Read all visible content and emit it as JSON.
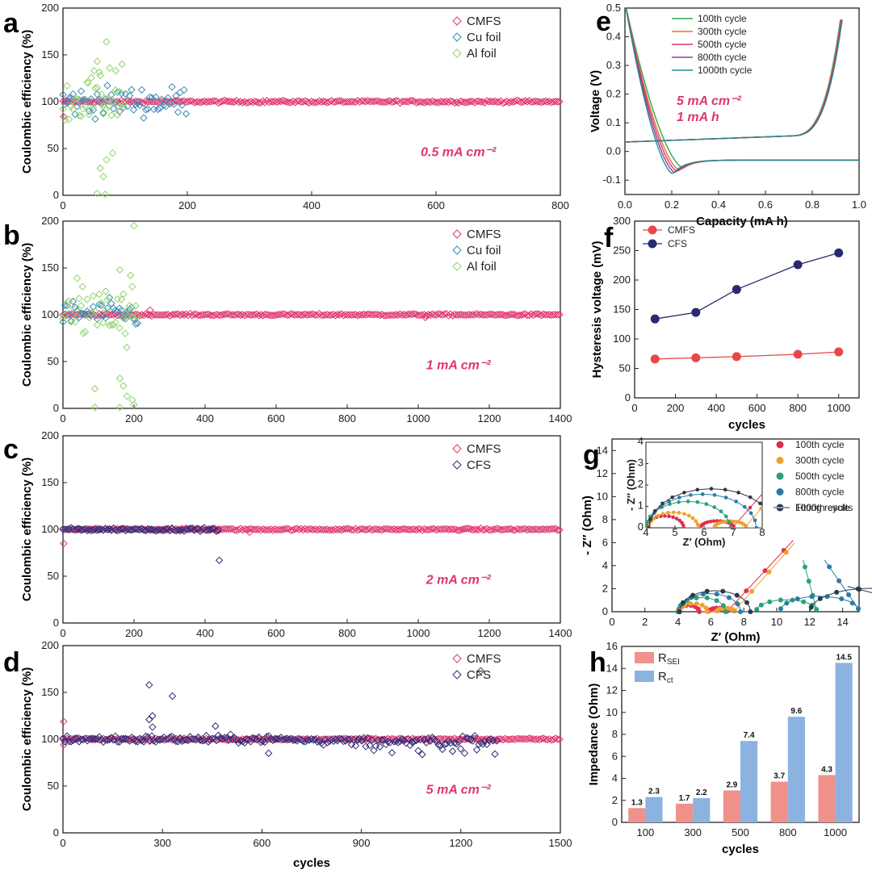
{
  "colors": {
    "cmfs": "#e0366e",
    "cu": "#3a8bb5",
    "al": "#8fd46a",
    "cfs": "#2e2e78",
    "red_line": "#e8474a",
    "navy_line": "#2a2a6e",
    "annotation": "#e0366e",
    "rsei": "#f0918c",
    "rct": "#8cb2e0"
  },
  "chart_data": [
    {
      "id": "a",
      "panel_label": "a",
      "type": "scatter",
      "xlabel": "",
      "ylabel": "Coulombic efficiency (%)",
      "xlim": [
        0,
        800
      ],
      "ylim": [
        0,
        200
      ],
      "xticks": [
        0,
        200,
        400,
        600,
        800
      ],
      "yticks": [
        0,
        50,
        100,
        150,
        200
      ],
      "annotation": "0.5 mA cm⁻²",
      "legend": [
        "CMFS",
        "Cu foil",
        "Al foil"
      ],
      "series": [
        {
          "name": "CMFS",
          "color_key": "cmfs",
          "x_range": [
            0,
            800
          ],
          "approx_value": 100,
          "scatter": 0.6,
          "low_outliers": [
            [
              1,
              84
            ]
          ]
        },
        {
          "name": "Cu foil",
          "color_key": "cu",
          "x_range": [
            0,
            200
          ],
          "approx_value": 100,
          "scatter": 8
        },
        {
          "name": "Al foil",
          "color_key": "al",
          "x_range": [
            0,
            100
          ],
          "approx_value": 102,
          "scatter": 12,
          "outliers": [
            [
              40,
              120
            ],
            [
              50,
              133
            ],
            [
              55,
              143
            ],
            [
              60,
              128
            ],
            [
              70,
              164
            ],
            [
              75,
              136
            ],
            [
              85,
              133
            ],
            [
              95,
              140
            ],
            [
              65,
              95
            ],
            [
              90,
              95
            ],
            [
              80,
              45
            ],
            [
              70,
              38
            ],
            [
              60,
              29
            ],
            [
              65,
              20
            ],
            [
              55,
              2
            ],
            [
              68,
              1
            ]
          ]
        }
      ]
    },
    {
      "id": "b",
      "panel_label": "b",
      "type": "scatter",
      "xlabel": "",
      "ylabel": "Coulombic efficiency (%)",
      "xlim": [
        0,
        1400
      ],
      "ylim": [
        0,
        200
      ],
      "xticks": [
        0,
        200,
        400,
        600,
        800,
        1000,
        1200,
        1400
      ],
      "yticks": [
        0,
        50,
        100,
        150,
        200
      ],
      "annotation": "1 mA cm⁻²",
      "legend": [
        "CMFS",
        "Cu foil",
        "Al foil"
      ],
      "series": [
        {
          "name": "CMFS",
          "color_key": "cmfs",
          "x_range": [
            0,
            1400
          ],
          "approx_value": 100,
          "scatter": 0.5,
          "low_outliers": [
            [
              245,
              105
            ],
            [
              1020,
              97
            ]
          ]
        },
        {
          "name": "Cu foil",
          "color_key": "cu",
          "x_range": [
            0,
            215
          ],
          "approx_value": 101,
          "scatter": 7
        },
        {
          "name": "Al foil",
          "color_key": "al",
          "x_range": [
            0,
            215
          ],
          "approx_value": 98,
          "scatter": 12,
          "outliers": [
            [
              200,
              195
            ],
            [
              160,
              148
            ],
            [
              40,
              139
            ],
            [
              55,
              130
            ],
            [
              190,
              142
            ],
            [
              170,
              122
            ],
            [
              195,
              130
            ],
            [
              120,
              125
            ],
            [
              180,
              65
            ],
            [
              175,
              80
            ],
            [
              160,
              32
            ],
            [
              170,
              24
            ],
            [
              90,
              21
            ],
            [
              180,
              13
            ],
            [
              195,
              9
            ],
            [
              200,
              4
            ],
            [
              90,
              1
            ],
            [
              160,
              1
            ]
          ]
        }
      ]
    },
    {
      "id": "c",
      "panel_label": "c",
      "type": "scatter",
      "xlabel": "",
      "ylabel": "Coulombic efficiency (%)",
      "xlim": [
        0,
        1400
      ],
      "ylim": [
        0,
        200
      ],
      "xticks": [
        0,
        200,
        400,
        600,
        800,
        1000,
        1200,
        1400
      ],
      "yticks": [
        0,
        50,
        100,
        150,
        200
      ],
      "annotation": "2 mA cm⁻²",
      "legend": [
        "CMFS",
        "CFS"
      ],
      "series": [
        {
          "name": "CMFS",
          "color_key": "cmfs",
          "x_range": [
            0,
            1400
          ],
          "approx_value": 100,
          "scatter": 0.5,
          "low_outliers": [
            [
              2,
              85
            ],
            [
              525,
              97
            ]
          ]
        },
        {
          "name": "CFS",
          "color_key": "cfs",
          "x_range": [
            0,
            440
          ],
          "approx_value": 100,
          "scatter": 0.8,
          "low_outliers": [
            [
              440,
              67
            ]
          ]
        }
      ]
    },
    {
      "id": "d",
      "panel_label": "d",
      "type": "scatter",
      "xlabel": "cycles",
      "ylabel": "Coulombic efficiency (%)",
      "xlim": [
        0,
        1500
      ],
      "ylim": [
        0,
        200
      ],
      "xticks": [
        0,
        300,
        600,
        900,
        1200,
        1500
      ],
      "yticks": [
        0,
        50,
        100,
        150,
        200
      ],
      "annotation": "5 mA cm⁻²",
      "legend": [
        "CMFS",
        "CFS"
      ],
      "series": [
        {
          "name": "CMFS",
          "color_key": "cmfs",
          "x_range": [
            0,
            1500
          ],
          "approx_value": 100,
          "scatter": 0.5,
          "low_outliers": [
            [
              2,
              119
            ],
            [
              2,
              94
            ]
          ]
        },
        {
          "name": "CFS",
          "color_key": "cfs",
          "x_range": [
            0,
            1310
          ],
          "approx_value": 100,
          "scatter": 2,
          "noisy_after": 700,
          "outliers": [
            [
              260,
              158
            ],
            [
              330,
              146
            ],
            [
              260,
              121
            ],
            [
              270,
              125
            ],
            [
              270,
              113
            ],
            [
              460,
              114
            ],
            [
              1260,
              173
            ],
            [
              620,
              85
            ]
          ]
        }
      ]
    },
    {
      "id": "e",
      "panel_label": "e",
      "type": "line",
      "xlabel": "Capacity (mA h)",
      "ylabel": "Voltage (V)",
      "xlim": [
        0,
        1.0
      ],
      "ylim": [
        -0.15,
        0.5
      ],
      "xticks": [
        0.0,
        0.2,
        0.4,
        0.6,
        0.8,
        1.0
      ],
      "yticks": [
        -0.1,
        0.0,
        0.1,
        0.2,
        0.3,
        0.4,
        0.5
      ],
      "annotation": "5 mA cm⁻²",
      "annotation2": "1 mA h",
      "series": [
        {
          "name": "100th cycle",
          "color": "#2fa84f",
          "min_x": 0.25,
          "min_v": -0.058
        },
        {
          "name": "300th cycle",
          "color": "#e8703a",
          "min_x": 0.235,
          "min_v": -0.066
        },
        {
          "name": "500th cycle",
          "color": "#e0366e",
          "min_x": 0.225,
          "min_v": -0.07
        },
        {
          "name": "800th cycle",
          "color": "#8a3fa0",
          "min_x": 0.215,
          "min_v": -0.074
        },
        {
          "name": "1000th cycle",
          "color": "#2a8a8a",
          "min_x": 0.205,
          "min_v": -0.078
        }
      ]
    },
    {
      "id": "f",
      "panel_label": "f",
      "type": "line",
      "xlabel": "cycles",
      "ylabel": "Hysteresis voltage (mV)",
      "xlim": [
        0,
        1100
      ],
      "ylim": [
        0,
        300
      ],
      "xticks": [
        0,
        200,
        400,
        600,
        800,
        1000
      ],
      "yticks": [
        0,
        50,
        100,
        150,
        200,
        250,
        300
      ],
      "x": [
        100,
        300,
        500,
        800,
        1000
      ],
      "series": [
        {
          "name": "CMFS",
          "color_key": "red_line",
          "values": [
            66,
            68,
            70,
            74,
            78
          ]
        },
        {
          "name": "CFS",
          "color_key": "navy_line",
          "values": [
            134,
            145,
            184,
            226,
            246
          ]
        }
      ]
    },
    {
      "id": "g",
      "panel_label": "g",
      "type": "scatter",
      "xlabel": "Z′ (Ohm)",
      "ylabel": "- Z″ (Ohm)",
      "xlim": [
        0,
        15
      ],
      "ylim": [
        0,
        15
      ],
      "xticks": [
        0,
        2,
        4,
        6,
        8,
        10,
        12,
        14
      ],
      "yticks": [
        0,
        2,
        4,
        6,
        8,
        10,
        12,
        14
      ],
      "legend_fit": "Fitting results",
      "series": [
        {
          "name": "100th cycle",
          "color": "#e0304a",
          "x0": 4.0,
          "rsei": 1.3,
          "rct": 2.3,
          "tail_end": [
            11.0,
            6.2
          ]
        },
        {
          "name": "300th cycle",
          "color": "#f0a030",
          "x0": 4.1,
          "rsei": 1.7,
          "rct": 2.2,
          "tail_end": [
            11.1,
            6.0
          ]
        },
        {
          "name": "500th cycle",
          "color": "#2aa07a",
          "x0": 4.0,
          "rsei": 2.9,
          "rct": 7.4,
          "tail_end": [
            11.6,
            4.5
          ]
        },
        {
          "name": "800th cycle",
          "color": "#2a7aa8",
          "x0": 4.1,
          "rsei": 3.7,
          "rct": 9.6,
          "tail_end": [
            12.9,
            4.5
          ]
        },
        {
          "name": "1000th cycle",
          "color": "#2a3a4a",
          "x0": 4.1,
          "rsei": 4.3,
          "rct": 14.5,
          "tail_end": [
            14.3,
            2.2
          ]
        }
      ],
      "inset": {
        "xlabel": "Z′ (Ohm)",
        "ylabel": "- Z″ (Ohm)",
        "xlim": [
          4,
          8
        ],
        "ylim": [
          0,
          4
        ],
        "xticks": [
          4,
          5,
          6,
          7,
          8
        ],
        "yticks": [
          0,
          1,
          2,
          3,
          4
        ]
      }
    },
    {
      "id": "h",
      "panel_label": "h",
      "type": "bar",
      "xlabel": "cycles",
      "ylabel": "Impedance (Ohm)",
      "categories": [
        "100",
        "300",
        "500",
        "800",
        "1000"
      ],
      "ylim": [
        0,
        16
      ],
      "yticks": [
        0,
        2,
        4,
        6,
        8,
        10,
        12,
        14,
        16
      ],
      "series": [
        {
          "name": "R",
          "sub": "SEI",
          "color_key": "rsei",
          "values": [
            1.3,
            1.7,
            2.9,
            3.7,
            4.3
          ]
        },
        {
          "name": "R",
          "sub": "ct",
          "color_key": "rct",
          "values": [
            2.3,
            2.2,
            7.4,
            9.6,
            14.5
          ]
        }
      ]
    }
  ]
}
